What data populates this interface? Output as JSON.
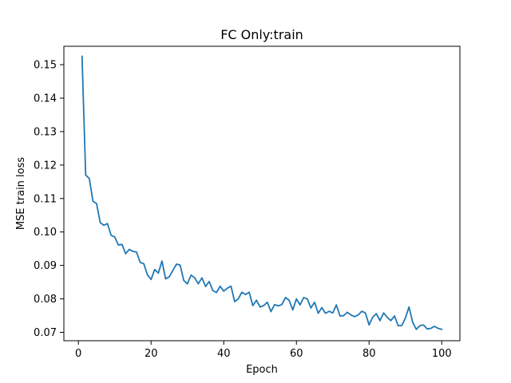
{
  "chart_data": {
    "type": "line",
    "title": "FC Only:train",
    "xlabel": "Epoch",
    "ylabel": "MSE train loss",
    "xlim": [
      -4,
      105
    ],
    "ylim": [
      0.0675,
      0.1555
    ],
    "xticks": [
      0,
      20,
      40,
      60,
      80,
      100
    ],
    "yticks": [
      0.07,
      0.08,
      0.09,
      0.1,
      0.11,
      0.12,
      0.13,
      0.14,
      0.15
    ],
    "xtick_labels": [
      "0",
      "20",
      "40",
      "60",
      "80",
      "100"
    ],
    "ytick_labels": [
      "0.07",
      "0.08",
      "0.09",
      "0.10",
      "0.11",
      "0.12",
      "0.13",
      "0.14",
      "0.15"
    ],
    "grid": false,
    "legend": "none",
    "series": [
      {
        "color": "#1f77b4",
        "x": [
          1,
          2,
          3,
          4,
          5,
          6,
          7,
          8,
          9,
          10,
          11,
          12,
          13,
          14,
          15,
          16,
          17,
          18,
          19,
          20,
          21,
          22,
          23,
          24,
          25,
          26,
          27,
          28,
          29,
          30,
          31,
          32,
          33,
          34,
          35,
          36,
          37,
          38,
          39,
          40,
          41,
          42,
          43,
          44,
          45,
          46,
          47,
          48,
          49,
          50,
          51,
          52,
          53,
          54,
          55,
          56,
          57,
          58,
          59,
          60,
          61,
          62,
          63,
          64,
          65,
          66,
          67,
          68,
          69,
          70,
          71,
          72,
          73,
          74,
          75,
          76,
          77,
          78,
          79,
          80,
          81,
          82,
          83,
          84,
          85,
          86,
          87,
          88,
          89,
          90,
          91,
          92,
          93,
          94,
          95,
          96,
          97,
          98,
          99,
          100
        ],
        "values": [
          0.1525,
          0.117,
          0.116,
          0.1092,
          0.1085,
          0.1028,
          0.102,
          0.1025,
          0.099,
          0.0985,
          0.0961,
          0.0963,
          0.0935,
          0.0948,
          0.0942,
          0.094,
          0.0909,
          0.0905,
          0.0872,
          0.0858,
          0.0888,
          0.0877,
          0.0913,
          0.086,
          0.0866,
          0.0885,
          0.0904,
          0.0901,
          0.0855,
          0.0845,
          0.0871,
          0.0863,
          0.0845,
          0.0863,
          0.0837,
          0.0852,
          0.0825,
          0.0819,
          0.0838,
          0.0823,
          0.0832,
          0.0838,
          0.0792,
          0.08,
          0.082,
          0.0813,
          0.082,
          0.078,
          0.0796,
          0.0776,
          0.078,
          0.079,
          0.0762,
          0.0783,
          0.0779,
          0.0783,
          0.0804,
          0.0796,
          0.0767,
          0.08,
          0.0782,
          0.0804,
          0.08,
          0.0773,
          0.079,
          0.0757,
          0.0774,
          0.0757,
          0.0763,
          0.0758,
          0.0782,
          0.0749,
          0.075,
          0.076,
          0.0752,
          0.0747,
          0.0752,
          0.0763,
          0.0758,
          0.0722,
          0.0745,
          0.0756,
          0.0735,
          0.0758,
          0.0745,
          0.0735,
          0.0749,
          0.072,
          0.072,
          0.0743,
          0.0776,
          0.073,
          0.0709,
          0.072,
          0.0722,
          0.071,
          0.0712,
          0.0718,
          0.0712,
          0.0709
        ]
      }
    ]
  }
}
